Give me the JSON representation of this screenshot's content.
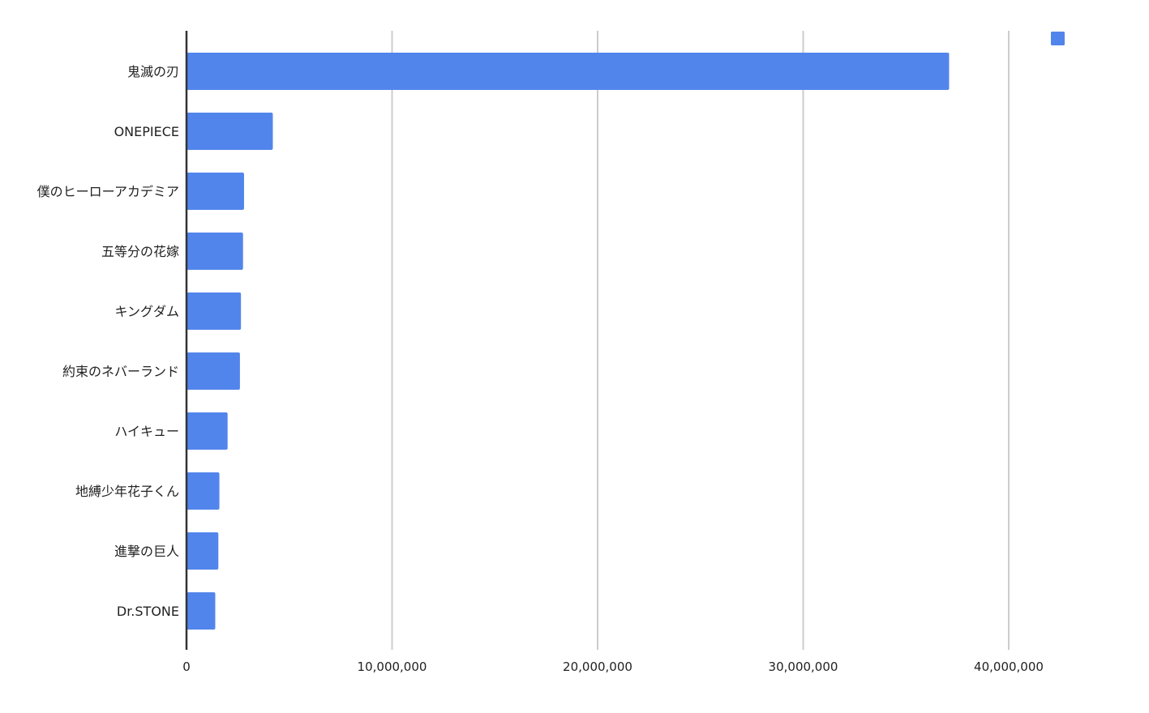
{
  "chart_data": {
    "type": "bar",
    "orientation": "horizontal",
    "title": "",
    "xlabel": "",
    "ylabel": "",
    "xlim": [
      0,
      40000000
    ],
    "xticks": [
      0,
      10000000,
      20000000,
      30000000,
      40000000
    ],
    "xtick_labels": [
      "0",
      "10,000,000",
      "20,000,000",
      "30,000,000",
      "40,000,000"
    ],
    "grid": true,
    "legend": {
      "position": "top-right",
      "entries": [
        ""
      ]
    },
    "categories": [
      "鬼滅の刃",
      "ONEPIECE",
      "僕のヒーローアカデミア",
      "五等分の花嫁",
      "キングダム",
      "約束のネバーランド",
      "ハイキュー",
      "地縛少年花子くん",
      "進撃の巨人",
      "Dr.STONE"
    ],
    "series": [
      {
        "values": [
          37100000,
          4200000,
          2800000,
          2750000,
          2650000,
          2600000,
          2000000,
          1600000,
          1550000,
          1400000
        ],
        "color": "#5285EC"
      }
    ]
  }
}
